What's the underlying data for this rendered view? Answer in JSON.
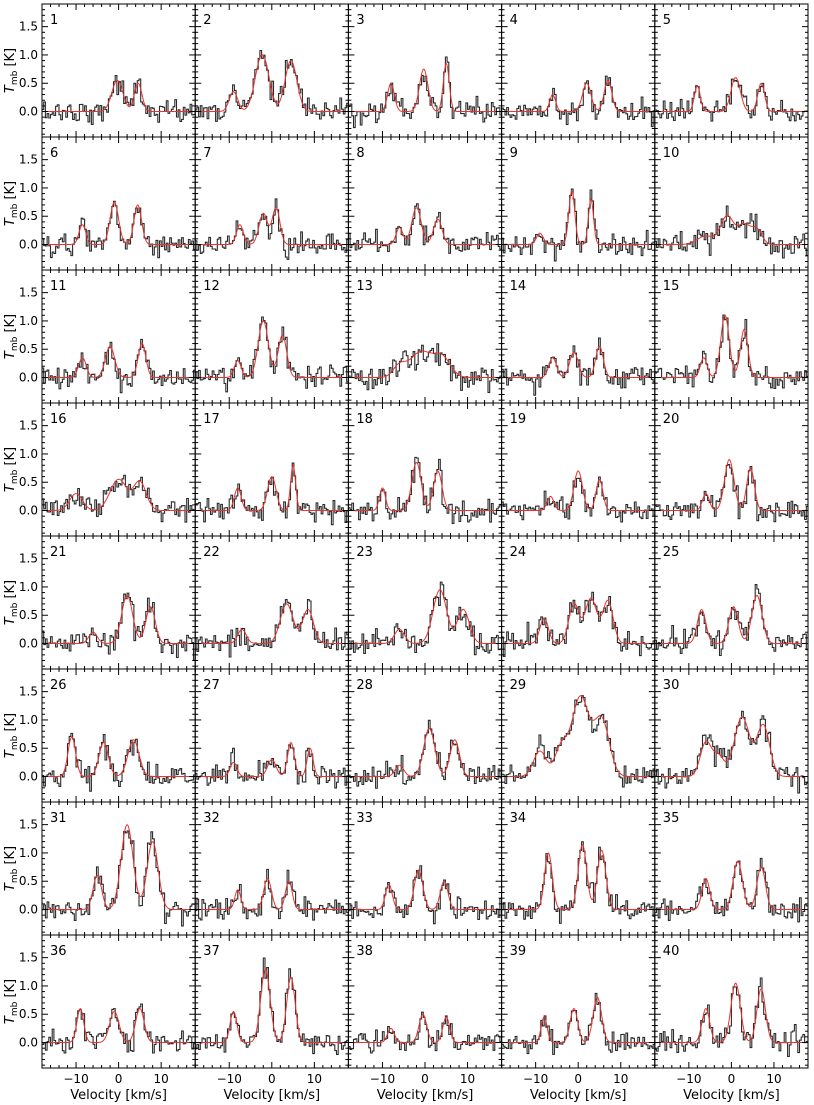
{
  "chart_data": {
    "type": "line",
    "layout": "small-multiples grid, 8 rows by 5 columns, shared axes",
    "xlabel": "Velocity [km/s]",
    "ylabel_symbol": "T",
    "ylabel_subscript": "mb",
    "ylabel_unit": "[K]",
    "xlim": [
      -18,
      18
    ],
    "ylim": [
      -0.45,
      1.9
    ],
    "x_ticks": [
      -10,
      0,
      10
    ],
    "x_tick_labels": [
      "−10",
      "0",
      "10"
    ],
    "y_ticks": [
      0.0,
      0.5,
      1.0,
      1.5
    ],
    "y_tick_labels": [
      "0.0",
      "0.5",
      "1.0",
      "1.5"
    ],
    "grid": false,
    "series_styles": {
      "observed": {
        "color": "#2a2a2a",
        "style": "histogram steps"
      },
      "fit": {
        "color": "#e8342f",
        "style": "smooth line"
      }
    },
    "panels": [
      {
        "label": "1",
        "components": [
          [
            -0.3,
            0.55,
            1.3
          ],
          [
            4.6,
            0.5,
            0.9
          ]
        ]
      },
      {
        "label": "2",
        "components": [
          [
            -9,
            0.35,
            1.0
          ],
          [
            -2.5,
            0.9,
            1.5
          ],
          [
            4.5,
            0.9,
            1.4
          ],
          [
            -1,
            0.2,
            1.2
          ]
        ]
      },
      {
        "label": "3",
        "components": [
          [
            -8,
            0.5,
            0.8
          ],
          [
            -0.3,
            0.75,
            1.0
          ],
          [
            5,
            0.85,
            0.7
          ]
        ]
      },
      {
        "label": "4",
        "components": [
          [
            -6,
            0.3,
            0.7
          ],
          [
            2,
            0.5,
            1.0
          ],
          [
            7,
            0.55,
            0.9
          ]
        ]
      },
      {
        "label": "5",
        "components": [
          [
            -8,
            0.45,
            0.7
          ],
          [
            1,
            0.6,
            1.1
          ],
          [
            7,
            0.5,
            0.8
          ]
        ]
      },
      {
        "label": "6",
        "components": [
          [
            -8.5,
            0.35,
            0.8
          ],
          [
            -1,
            0.75,
            1.0
          ],
          [
            4.5,
            0.7,
            0.9
          ]
        ]
      },
      {
        "label": "7",
        "components": [
          [
            -7.5,
            0.35,
            0.8
          ],
          [
            -2,
            0.55,
            1.0
          ],
          [
            1,
            0.65,
            0.9
          ]
        ]
      },
      {
        "label": "8",
        "components": [
          [
            -6,
            0.3,
            0.8
          ],
          [
            -2,
            0.65,
            1.1
          ],
          [
            3,
            0.45,
            1.0
          ]
        ]
      },
      {
        "label": "9",
        "components": [
          [
            -9,
            0.2,
            0.8
          ],
          [
            -1.5,
            0.95,
            0.7
          ],
          [
            3,
            0.8,
            0.6
          ]
        ]
      },
      {
        "label": "10",
        "components": [
          [
            -6,
            0.15,
            2.0
          ],
          [
            -1,
            0.5,
            1.5
          ],
          [
            3,
            0.35,
            1.5
          ],
          [
            6,
            0.25,
            1.2
          ]
        ]
      },
      {
        "label": "11",
        "components": [
          [
            -8.5,
            0.35,
            0.9
          ],
          [
            -2,
            0.55,
            1.1
          ],
          [
            5.5,
            0.6,
            0.9
          ]
        ]
      },
      {
        "label": "12",
        "components": [
          [
            -8,
            0.3,
            0.8
          ],
          [
            -2,
            1.0,
            1.2
          ],
          [
            2.5,
            0.75,
            1.0
          ]
        ]
      },
      {
        "label": "13",
        "components": [
          [
            -6,
            0.2,
            1.5
          ],
          [
            -1,
            0.45,
            2.5
          ],
          [
            4,
            0.35,
            2.0
          ]
        ]
      },
      {
        "label": "14",
        "components": [
          [
            -6,
            0.35,
            0.9
          ],
          [
            -1,
            0.45,
            1.0
          ],
          [
            5,
            0.55,
            0.9
          ]
        ]
      },
      {
        "label": "15",
        "components": [
          [
            -6.5,
            0.35,
            0.8
          ],
          [
            -1.5,
            1.1,
            1.0
          ],
          [
            3,
            0.85,
            0.9
          ]
        ]
      },
      {
        "label": "16",
        "components": [
          [
            -10,
            0.3,
            1.5
          ],
          [
            0,
            0.55,
            2.0
          ],
          [
            5,
            0.5,
            1.5
          ]
        ]
      },
      {
        "label": "17",
        "components": [
          [
            -8,
            0.4,
            0.8
          ],
          [
            0,
            0.6,
            1.0
          ],
          [
            5,
            0.8,
            0.6
          ]
        ]
      },
      {
        "label": "18",
        "components": [
          [
            -10,
            0.4,
            0.7
          ],
          [
            -2,
            0.85,
            1.1
          ],
          [
            3,
            0.7,
            1.0
          ]
        ]
      },
      {
        "label": "19",
        "components": [
          [
            -6.5,
            0.25,
            0.8
          ],
          [
            0,
            0.7,
            1.0
          ],
          [
            5,
            0.55,
            0.8
          ]
        ]
      },
      {
        "label": "20",
        "components": [
          [
            -6,
            0.3,
            0.8
          ],
          [
            -0.5,
            0.9,
            1.1
          ],
          [
            4.5,
            0.75,
            0.9
          ]
        ]
      },
      {
        "label": "21",
        "components": [
          [
            -6,
            0.2,
            1.0
          ],
          [
            2,
            0.85,
            1.3
          ],
          [
            7.5,
            0.65,
            1.1
          ]
        ]
      },
      {
        "label": "22",
        "components": [
          [
            -7,
            0.25,
            1.0
          ],
          [
            3.5,
            0.7,
            1.5
          ],
          [
            8.5,
            0.6,
            1.3
          ]
        ]
      },
      {
        "label": "23",
        "components": [
          [
            -6,
            0.25,
            1.2
          ],
          [
            3.5,
            0.95,
            1.6
          ],
          [
            9,
            0.6,
            1.4
          ]
        ]
      },
      {
        "label": "24",
        "components": [
          [
            -8,
            0.45,
            1.0
          ],
          [
            -1,
            0.7,
            1.2
          ],
          [
            3,
            0.8,
            1.4
          ],
          [
            7,
            0.75,
            1.2
          ]
        ]
      },
      {
        "label": "25",
        "components": [
          [
            -7,
            0.6,
            1.0
          ],
          [
            0.5,
            0.65,
            1.1
          ],
          [
            6,
            0.85,
            1.2
          ]
        ]
      },
      {
        "label": "26",
        "components": [
          [
            -11,
            0.7,
            0.9
          ],
          [
            -3.5,
            0.6,
            1.1
          ],
          [
            3.5,
            0.65,
            1.3
          ]
        ]
      },
      {
        "label": "27",
        "components": [
          [
            -9,
            0.25,
            0.8
          ],
          [
            0,
            0.3,
            1.0
          ],
          [
            4.5,
            0.6,
            0.8
          ],
          [
            9,
            0.5,
            0.7
          ]
        ]
      },
      {
        "label": "28",
        "components": [
          [
            -6,
            0.2,
            1.0
          ],
          [
            1,
            0.85,
            1.3
          ],
          [
            7,
            0.65,
            1.1
          ]
        ]
      },
      {
        "label": "29",
        "components": [
          [
            -9,
            0.45,
            1.5
          ],
          [
            -4,
            0.5,
            1.5
          ],
          [
            0.5,
            1.4,
            2.0
          ],
          [
            5.5,
            1.0,
            1.8
          ]
        ]
      },
      {
        "label": "30",
        "components": [
          [
            -6,
            0.6,
            1.3
          ],
          [
            -3,
            0.35,
            1.3
          ],
          [
            2.5,
            1.05,
            1.8
          ],
          [
            7.5,
            0.9,
            1.5
          ]
        ]
      },
      {
        "label": "31",
        "components": [
          [
            -5,
            0.6,
            1.0
          ],
          [
            2,
            1.5,
            1.4
          ],
          [
            8,
            1.2,
            1.3
          ]
        ]
      },
      {
        "label": "32",
        "components": [
          [
            -8,
            0.35,
            0.7
          ],
          [
            -1,
            0.55,
            0.9
          ],
          [
            4,
            0.5,
            0.8
          ]
        ]
      },
      {
        "label": "33",
        "components": [
          [
            -8.5,
            0.45,
            0.8
          ],
          [
            -1.5,
            0.7,
            1.0
          ],
          [
            4.5,
            0.5,
            0.9
          ]
        ]
      },
      {
        "label": "34",
        "components": [
          [
            -7,
            1.0,
            0.9
          ],
          [
            1,
            1.15,
            1.0
          ],
          [
            5.5,
            1.05,
            1.0
          ]
        ]
      },
      {
        "label": "35",
        "components": [
          [
            -6,
            0.55,
            0.9
          ],
          [
            1.5,
            0.85,
            1.1
          ],
          [
            7,
            0.75,
            1.0
          ]
        ]
      },
      {
        "label": "36",
        "components": [
          [
            -9,
            0.6,
            0.8
          ],
          [
            -1,
            0.55,
            1.1
          ],
          [
            5,
            0.6,
            1.0
          ]
        ]
      },
      {
        "label": "37",
        "components": [
          [
            -9,
            0.55,
            0.8
          ],
          [
            -1.5,
            1.3,
            1.1
          ],
          [
            4.5,
            1.15,
            1.0
          ]
        ]
      },
      {
        "label": "38",
        "components": [
          [
            -8,
            0.25,
            0.8
          ],
          [
            -0.5,
            0.5,
            0.9
          ],
          [
            5,
            0.45,
            0.8
          ]
        ]
      },
      {
        "label": "39",
        "components": [
          [
            -8,
            0.45,
            0.7
          ],
          [
            -1,
            0.6,
            0.9
          ],
          [
            4.5,
            0.8,
            1.0
          ]
        ]
      },
      {
        "label": "40",
        "components": [
          [
            -6,
            0.6,
            0.9
          ],
          [
            1,
            1.05,
            1.1
          ],
          [
            7,
            0.95,
            1.0
          ]
        ]
      }
    ]
  }
}
